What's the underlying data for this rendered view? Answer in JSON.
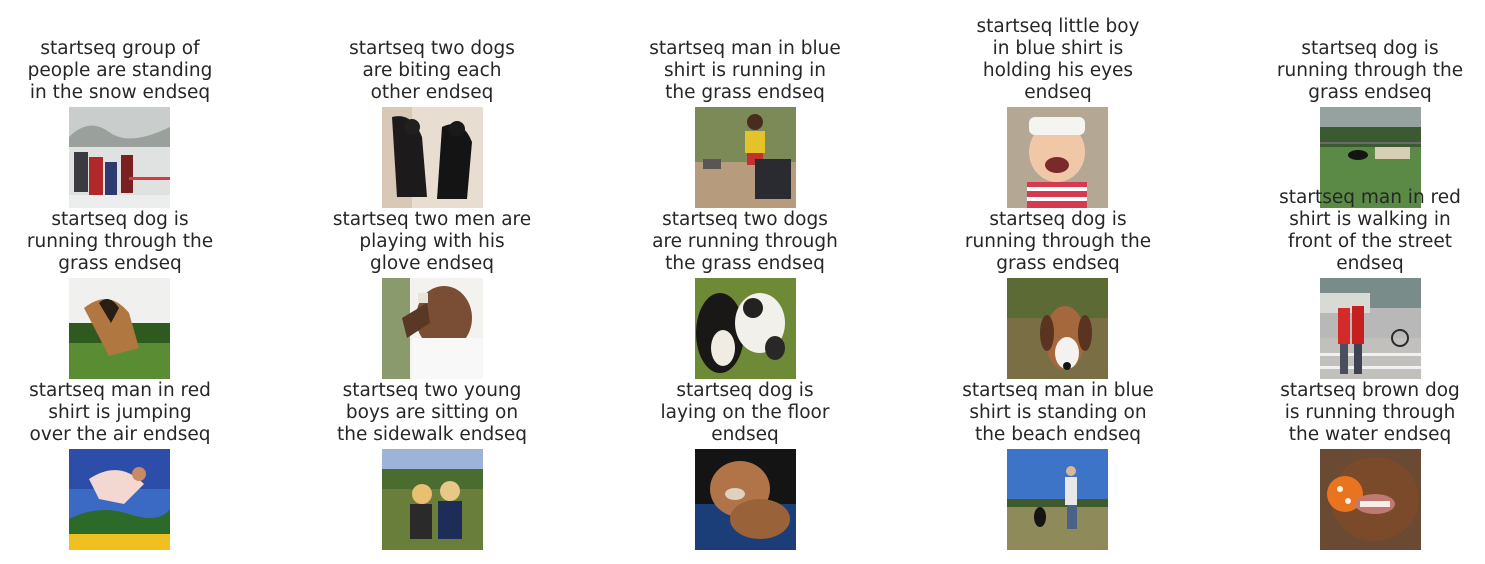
{
  "grid": {
    "rows": [
      [
        {
          "caption": "startseq group of\npeople are standing\nin the snow endseq",
          "image": "people-in-snow-photo"
        },
        {
          "caption": "startseq two dogs\nare biting each\nother endseq",
          "image": "two-black-dogs-photo"
        },
        {
          "caption": "startseq man in blue\nshirt is running in\nthe grass endseq",
          "image": "man-with-dog-photo"
        },
        {
          "caption": "startseq little boy\nin blue shirt is\nholding his eyes\nendseq",
          "image": "laughing-child-photo"
        },
        {
          "caption": "startseq dog is\nrunning through the\ngrass endseq",
          "image": "dog-in-field-photo"
        }
      ],
      [
        {
          "caption": "startseq dog is\nrunning through the\ngrass endseq",
          "image": "jumping-shepherd-photo"
        },
        {
          "caption": "startseq two men are\nplaying with his\nglove endseq",
          "image": "boy-eating-photo"
        },
        {
          "caption": "startseq two dogs\nare running through\nthe grass endseq",
          "image": "two-dogs-grass-photo"
        },
        {
          "caption": "startseq dog is\nrunning through the\ngrass endseq",
          "image": "beagle-photo"
        },
        {
          "caption": "startseq man in red\nshirt is walking in\nfront of the street\nendseq",
          "image": "street-people-photo"
        }
      ],
      [
        {
          "caption": "startseq man in red\nshirt is jumping\nover the air endseq",
          "image": "jumping-person-photo"
        },
        {
          "caption": "startseq two young\nboys are sitting on\nthe sidewalk endseq",
          "image": "two-boys-sitting-photo"
        },
        {
          "caption": "startseq dog is\nlaying on the floor\nendseq",
          "image": "brown-dog-blanket-photo"
        },
        {
          "caption": "startseq man in blue\nshirt is standing on\nthe beach endseq",
          "image": "man-and-dog-field-photo"
        },
        {
          "caption": "startseq brown dog\nis running through\nthe water endseq",
          "image": "dog-with-ball-photo"
        }
      ]
    ]
  }
}
